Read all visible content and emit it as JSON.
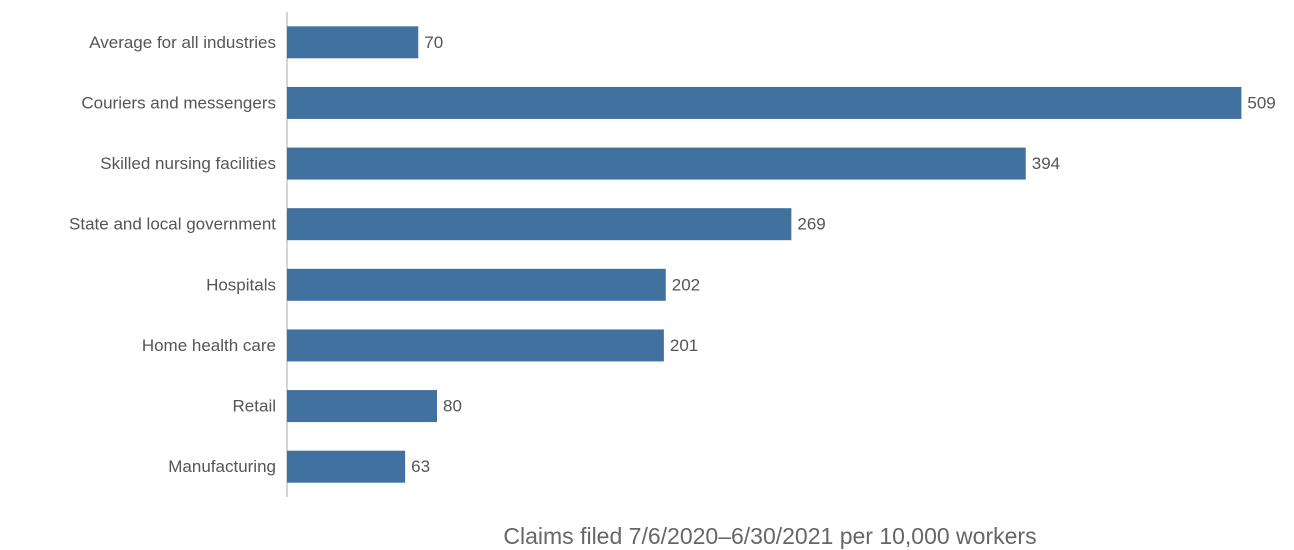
{
  "chart_data": {
    "type": "barh",
    "categories": [
      "Average for all industries",
      "Couriers and messengers",
      "Skilled nursing facilities",
      "State and local government",
      "Hospitals",
      "Home health care",
      "Retail",
      "Manufacturing"
    ],
    "values": [
      70,
      509,
      394,
      269,
      202,
      201,
      80,
      63
    ],
    "color": "#41729f",
    "xlim": [
      0,
      520
    ],
    "xlabel": "Claims filed 7/6/2020–6/30/2021 per 10,000 workers"
  }
}
